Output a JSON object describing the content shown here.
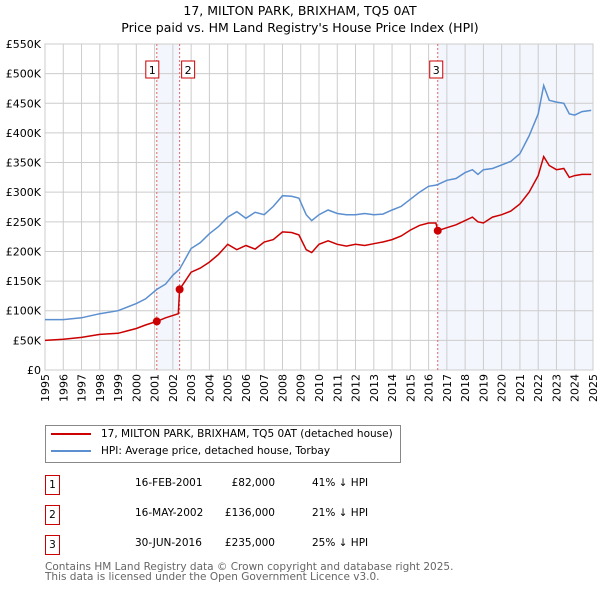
{
  "title": "17, MILTON PARK, BRIXHAM, TQ5 0AT",
  "subtitle": "Price paid vs. HM Land Registry's House Price Index (HPI)",
  "chart_data": {
    "type": "line",
    "title": "17, MILTON PARK, BRIXHAM, TQ5 0AT",
    "subtitle": "Price paid vs. HM Land Registry's House Price Index (HPI)",
    "xlim": [
      1995,
      2025
    ],
    "ylim": [
      0,
      550000
    ],
    "grid": true,
    "x_ticks": [
      "1995",
      "1996",
      "1997",
      "1998",
      "1999",
      "2000",
      "2001",
      "2002",
      "2003",
      "2004",
      "2005",
      "2006",
      "2007",
      "2008",
      "2009",
      "2010",
      "2011",
      "2012",
      "2013",
      "2014",
      "2015",
      "2016",
      "2017",
      "2018",
      "2019",
      "2020",
      "2021",
      "2022",
      "2023",
      "2024",
      "2025"
    ],
    "y_ticks": [
      {
        "v": 0,
        "label": "£0"
      },
      {
        "v": 50000,
        "label": "£50K"
      },
      {
        "v": 100000,
        "label": "£100K"
      },
      {
        "v": 150000,
        "label": "£150K"
      },
      {
        "v": 200000,
        "label": "£200K"
      },
      {
        "v": 250000,
        "label": "£250K"
      },
      {
        "v": 300000,
        "label": "£300K"
      },
      {
        "v": 350000,
        "label": "£350K"
      },
      {
        "v": 400000,
        "label": "£400K"
      },
      {
        "v": 450000,
        "label": "£450K"
      },
      {
        "v": 500000,
        "label": "£500K"
      },
      {
        "v": 550000,
        "label": "£550K"
      }
    ],
    "legend_position": "below",
    "series": [
      {
        "name": "17, MILTON PARK, BRIXHAM, TQ5 0AT (detached house)",
        "color": "#cc0000",
        "x": [
          1995,
          1996,
          1997,
          1998,
          1999,
          2000,
          2000.5,
          2001.12,
          2001.6,
          2002.3,
          2002.37,
          2003,
          2003.5,
          2004,
          2004.5,
          2005,
          2005.5,
          2006,
          2006.5,
          2007,
          2007.5,
          2008,
          2008.5,
          2008.9,
          2009.3,
          2009.6,
          2010,
          2010.5,
          2011,
          2011.5,
          2012,
          2012.5,
          2013,
          2013.5,
          2014,
          2014.5,
          2015,
          2015.5,
          2016,
          2016.4,
          2016.5,
          2017,
          2017.5,
          2018,
          2018.4,
          2018.7,
          2019,
          2019.5,
          2020,
          2020.5,
          2021,
          2021.5,
          2022,
          2022.3,
          2022.6,
          2023,
          2023.4,
          2023.7,
          2024,
          2024.4,
          2024.9
        ],
        "y": [
          50000,
          52000,
          55000,
          60000,
          62000,
          70000,
          76000,
          82000,
          88000,
          95000,
          136000,
          165000,
          172000,
          182000,
          195000,
          212000,
          203000,
          210000,
          204000,
          216000,
          220000,
          233000,
          232000,
          228000,
          203000,
          198000,
          212000,
          218000,
          212000,
          209000,
          212000,
          210000,
          213000,
          216000,
          220000,
          226000,
          236000,
          244000,
          248000,
          248000,
          235000,
          240000,
          245000,
          252000,
          258000,
          250000,
          248000,
          258000,
          262000,
          268000,
          280000,
          300000,
          328000,
          360000,
          345000,
          338000,
          340000,
          325000,
          328000,
          330000,
          330000
        ]
      },
      {
        "name": "HPI: Average price, detached house, Torbay",
        "color": "#5b8fd0",
        "x": [
          1995,
          1996,
          1997,
          1998,
          1999,
          2000,
          2000.5,
          2001.12,
          2001.6,
          2002,
          2002.37,
          2003,
          2003.5,
          2004,
          2004.5,
          2005,
          2005.5,
          2006,
          2006.5,
          2007,
          2007.5,
          2008,
          2008.5,
          2008.9,
          2009.3,
          2009.6,
          2010,
          2010.5,
          2011,
          2011.5,
          2012,
          2012.5,
          2013,
          2013.5,
          2014,
          2014.5,
          2015,
          2015.5,
          2016,
          2016.4,
          2016.5,
          2017,
          2017.5,
          2018,
          2018.4,
          2018.7,
          2019,
          2019.5,
          2020,
          2020.5,
          2021,
          2021.5,
          2022,
          2022.3,
          2022.6,
          2023,
          2023.4,
          2023.7,
          2024,
          2024.4,
          2024.9
        ],
        "y": [
          85000,
          85000,
          88000,
          95000,
          100000,
          112000,
          120000,
          136000,
          145000,
          160000,
          170000,
          205000,
          215000,
          230000,
          242000,
          258000,
          267000,
          256000,
          266000,
          262000,
          276000,
          294000,
          293000,
          290000,
          262000,
          252000,
          262000,
          270000,
          264000,
          262000,
          262000,
          264000,
          262000,
          263000,
          270000,
          276000,
          288000,
          300000,
          310000,
          312000,
          313000,
          320000,
          323000,
          333000,
          338000,
          330000,
          338000,
          340000,
          346000,
          352000,
          365000,
          395000,
          432000,
          480000,
          455000,
          452000,
          450000,
          432000,
          430000,
          436000,
          438000
        ]
      }
    ],
    "markers": [
      {
        "label": "1",
        "x": 2001.12,
        "y": 82000
      },
      {
        "label": "2",
        "x": 2002.37,
        "y": 136000
      },
      {
        "label": "3",
        "x": 2016.5,
        "y": 235000
      }
    ],
    "shaded_ranges": [
      [
        2001.12,
        2002.37
      ],
      [
        2016.5,
        2025
      ]
    ]
  },
  "legend": {
    "property": "17, MILTON PARK, BRIXHAM, TQ5 0AT (detached house)",
    "hpi": "HPI: Average price, detached house, Torbay",
    "property_color": "#cc0000",
    "hpi_color": "#5b8fd0"
  },
  "transactions": [
    {
      "num": "1",
      "date": "16-FEB-2001",
      "price": "£82,000",
      "hpi": "41% ↓ HPI"
    },
    {
      "num": "2",
      "date": "16-MAY-2002",
      "price": "£136,000",
      "hpi": "21% ↓ HPI"
    },
    {
      "num": "3",
      "date": "30-JUN-2016",
      "price": "£235,000",
      "hpi": "25% ↓ HPI"
    }
  ],
  "footer": {
    "line1": "Contains HM Land Registry data © Crown copyright and database right 2025.",
    "line2": "This data is licensed under the Open Government Licence v3.0."
  }
}
